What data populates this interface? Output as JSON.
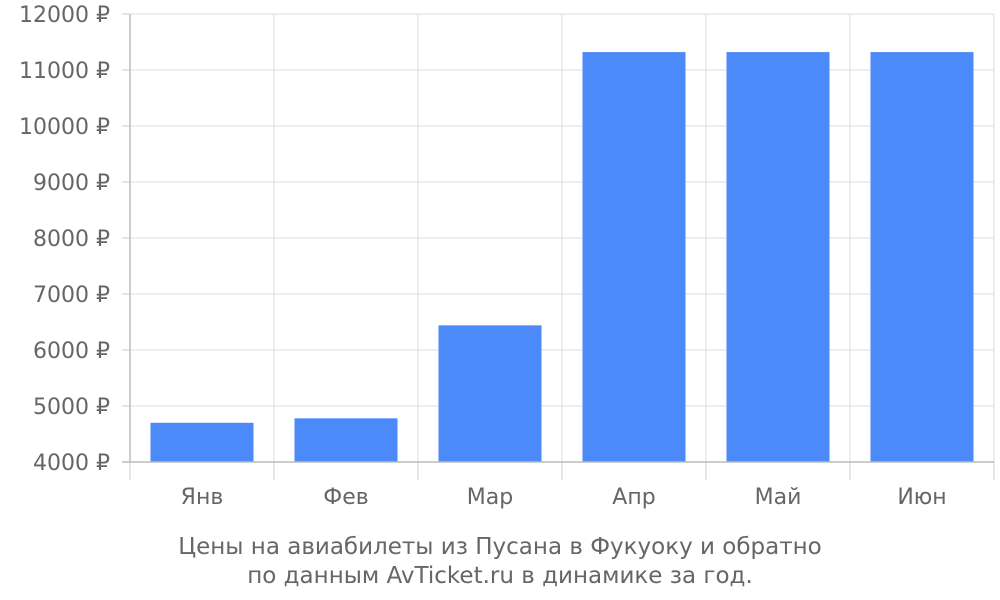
{
  "chart_data": {
    "type": "bar",
    "categories": [
      "Янв",
      "Фев",
      "Мар",
      "Апр",
      "Май",
      "Июн"
    ],
    "values": [
      4700,
      4780,
      6440,
      11320,
      11320,
      11320
    ],
    "ylim": [
      4000,
      12000
    ],
    "yticks": [
      4000,
      5000,
      6000,
      7000,
      8000,
      9000,
      10000,
      11000,
      12000
    ],
    "y_tick_suffix": " ₽",
    "bar_color": "#4d8af9",
    "grid": true,
    "legend": "none"
  },
  "caption": {
    "line1": "Цены на авиабилеты из Пусана в Фукуоку и обратно",
    "line2": "по данным AvTicket.ru в динамике за год."
  }
}
